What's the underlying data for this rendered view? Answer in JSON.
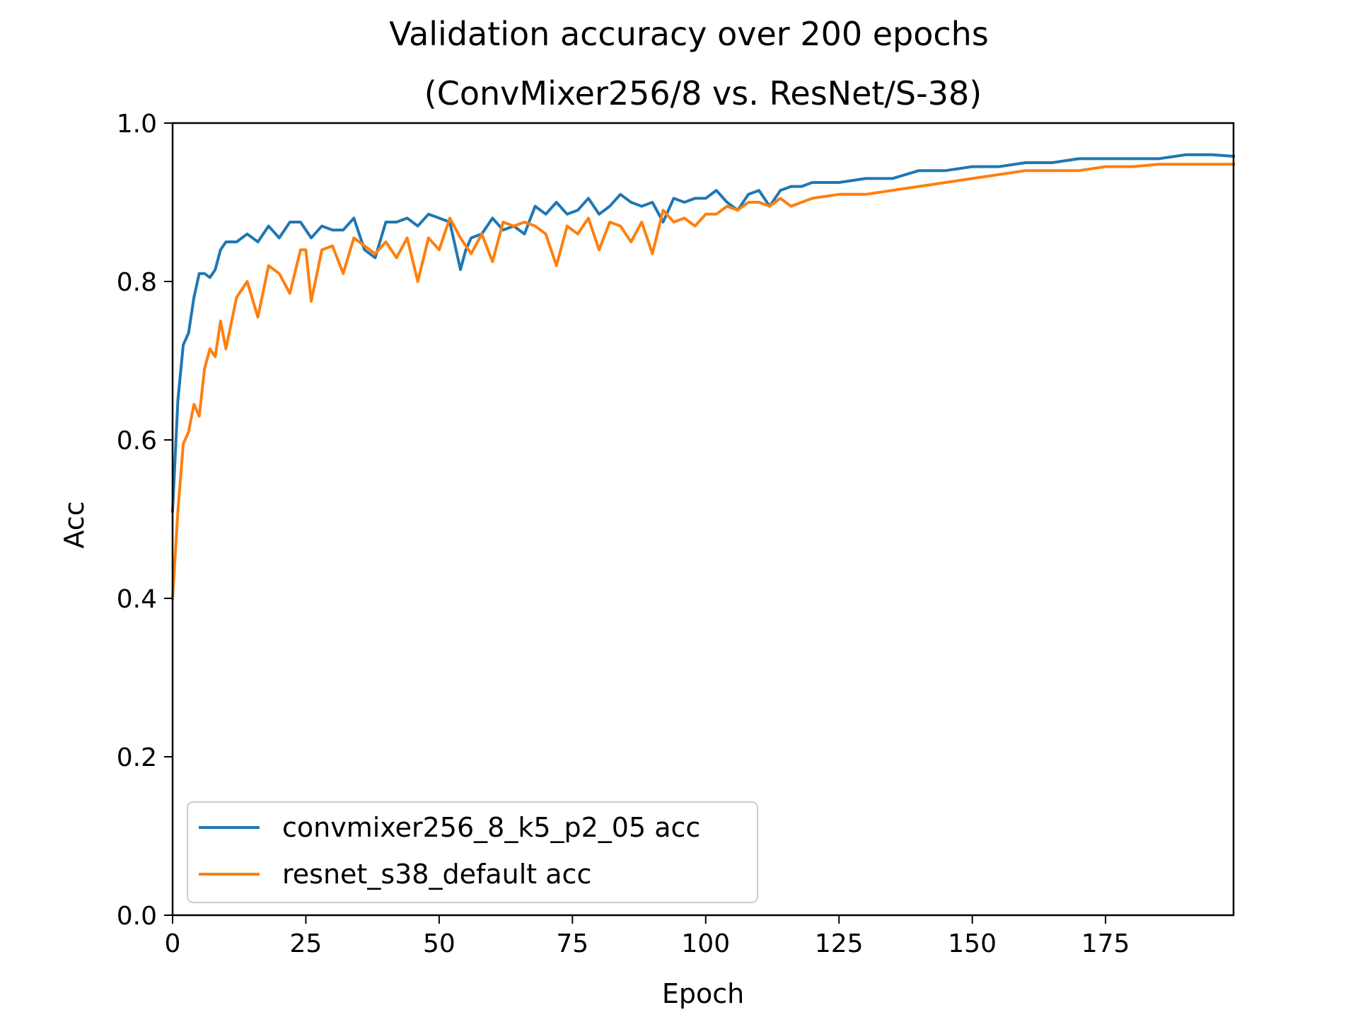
{
  "chart_data": {
    "type": "line",
    "title": "Validation accuracy over 200 epochs",
    "subtitle": "(ConvMixer256/8 vs. ResNet/S-38)",
    "xlabel": "Epoch",
    "ylabel": "Acc",
    "xlim": [
      0,
      199
    ],
    "ylim": [
      0,
      1.0
    ],
    "xticks": [
      0,
      25,
      50,
      75,
      100,
      125,
      150,
      175
    ],
    "xtick_labels": [
      "0",
      "25",
      "50",
      "75",
      "100",
      "125",
      "150",
      "175"
    ],
    "yticks": [
      0,
      0.2,
      0.4,
      0.6,
      0.8,
      1.0
    ],
    "ytick_labels": [
      "0.0",
      "0.2",
      "0.4",
      "0.6",
      "0.8",
      "1.0"
    ],
    "grid": false,
    "legend_position": "lower-left",
    "series": [
      {
        "name": "convmixer256_8_k5_p2_05 acc",
        "color": "#1f77b4",
        "x": [
          0,
          1,
          2,
          3,
          4,
          5,
          6,
          7,
          8,
          9,
          10,
          12,
          14,
          16,
          18,
          20,
          22,
          24,
          26,
          28,
          30,
          32,
          34,
          36,
          38,
          40,
          42,
          44,
          46,
          48,
          50,
          52,
          54,
          55,
          56,
          58,
          60,
          62,
          64,
          66,
          68,
          70,
          72,
          74,
          76,
          78,
          80,
          82,
          84,
          86,
          88,
          90,
          92,
          94,
          96,
          98,
          100,
          102,
          104,
          106,
          108,
          110,
          112,
          114,
          116,
          118,
          120,
          125,
          130,
          135,
          140,
          145,
          150,
          155,
          160,
          165,
          170,
          175,
          180,
          185,
          190,
          195,
          199
        ],
        "y": [
          0.51,
          0.65,
          0.72,
          0.735,
          0.78,
          0.81,
          0.81,
          0.805,
          0.815,
          0.84,
          0.85,
          0.85,
          0.86,
          0.85,
          0.87,
          0.855,
          0.875,
          0.875,
          0.855,
          0.87,
          0.865,
          0.865,
          0.88,
          0.84,
          0.83,
          0.875,
          0.875,
          0.88,
          0.87,
          0.885,
          0.88,
          0.875,
          0.815,
          0.84,
          0.855,
          0.86,
          0.88,
          0.865,
          0.87,
          0.86,
          0.895,
          0.885,
          0.9,
          0.885,
          0.89,
          0.905,
          0.885,
          0.895,
          0.91,
          0.9,
          0.895,
          0.9,
          0.875,
          0.905,
          0.9,
          0.905,
          0.905,
          0.915,
          0.9,
          0.89,
          0.91,
          0.915,
          0.895,
          0.915,
          0.92,
          0.92,
          0.925,
          0.925,
          0.93,
          0.93,
          0.94,
          0.94,
          0.945,
          0.945,
          0.95,
          0.95,
          0.955,
          0.955,
          0.955,
          0.955,
          0.96,
          0.96,
          0.958
        ]
      },
      {
        "name": "resnet_s38_default acc",
        "color": "#ff7f0e",
        "x": [
          0,
          1,
          2,
          3,
          4,
          5,
          6,
          7,
          8,
          9,
          10,
          12,
          14,
          16,
          18,
          20,
          22,
          24,
          25,
          26,
          28,
          30,
          32,
          34,
          36,
          38,
          40,
          42,
          44,
          46,
          48,
          50,
          52,
          54,
          56,
          58,
          60,
          62,
          64,
          66,
          68,
          70,
          72,
          74,
          76,
          78,
          80,
          82,
          84,
          86,
          88,
          90,
          92,
          94,
          96,
          98,
          100,
          102,
          104,
          106,
          108,
          110,
          112,
          114,
          116,
          118,
          120,
          125,
          130,
          135,
          140,
          145,
          150,
          155,
          160,
          165,
          170,
          175,
          180,
          185,
          190,
          195,
          199
        ],
        "y": [
          0.4,
          0.51,
          0.595,
          0.61,
          0.645,
          0.63,
          0.69,
          0.715,
          0.705,
          0.75,
          0.715,
          0.78,
          0.8,
          0.755,
          0.82,
          0.81,
          0.785,
          0.84,
          0.84,
          0.775,
          0.84,
          0.845,
          0.81,
          0.855,
          0.845,
          0.835,
          0.85,
          0.83,
          0.855,
          0.8,
          0.855,
          0.84,
          0.88,
          0.855,
          0.835,
          0.86,
          0.825,
          0.875,
          0.87,
          0.875,
          0.87,
          0.86,
          0.82,
          0.87,
          0.86,
          0.88,
          0.84,
          0.875,
          0.87,
          0.85,
          0.875,
          0.835,
          0.89,
          0.875,
          0.88,
          0.87,
          0.885,
          0.885,
          0.895,
          0.89,
          0.9,
          0.9,
          0.895,
          0.905,
          0.895,
          0.9,
          0.905,
          0.91,
          0.91,
          0.915,
          0.92,
          0.925,
          0.93,
          0.935,
          0.94,
          0.94,
          0.94,
          0.945,
          0.945,
          0.948,
          0.948,
          0.948,
          0.948
        ]
      }
    ]
  }
}
